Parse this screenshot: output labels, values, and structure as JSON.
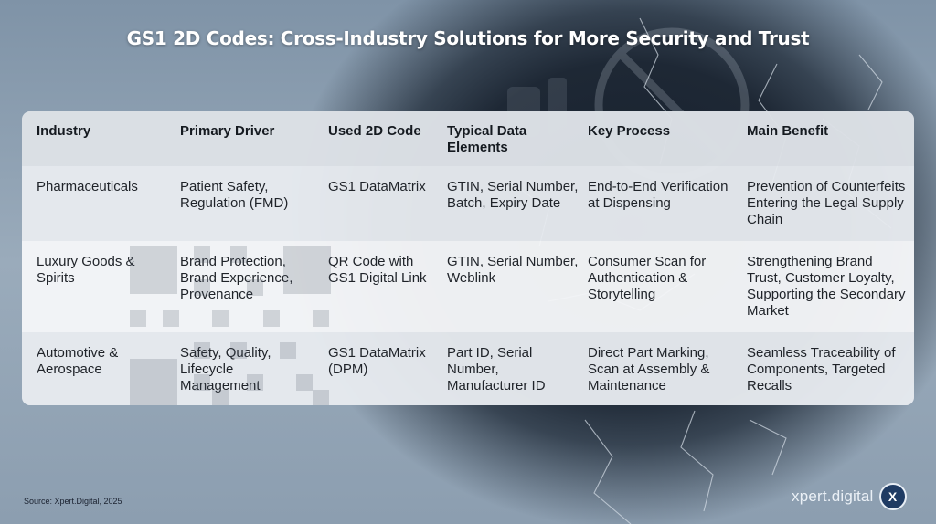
{
  "title": "GS1 2D Codes: Cross-Industry Solutions for More Security and Trust",
  "table": {
    "headers": [
      "Industry",
      "Primary Driver",
      "Used 2D Code",
      "Typical Data Elements",
      "Key Process",
      "Main Benefit"
    ],
    "rows": [
      [
        "Pharmaceuticals",
        "Patient Safety, Regulation (FMD)",
        "GS1 DataMatrix",
        "GTIN, Serial Number, Batch, Expiry Date",
        "End-to-End Verification at Dispensing",
        "Prevention of Counterfeits Entering the Legal Supply Chain"
      ],
      [
        "Luxury Goods & Spirits",
        "Brand Protection, Brand Experience, Provenance",
        "QR Code with GS1 Digital Link",
        "GTIN, Serial Number, Weblink",
        "Consumer Scan for Authentication & Storytelling",
        "Strengthening Brand Trust, Customer Loyalty, Supporting the Secondary Market"
      ],
      [
        "Automotive & Aerospace",
        "Safety, Quality, Lifecycle Management",
        "GS1 DataMatrix (DPM)",
        "Part ID, Serial Number, Manufacturer ID",
        "Direct Part Marking, Scan at Assembly & Maintenance",
        "Seamless Traceability of Components, Targeted Recalls"
      ]
    ]
  },
  "source": "Source: Xpert.Digital, 2025",
  "brand": {
    "name": "xpert.digital",
    "badge": "X"
  }
}
